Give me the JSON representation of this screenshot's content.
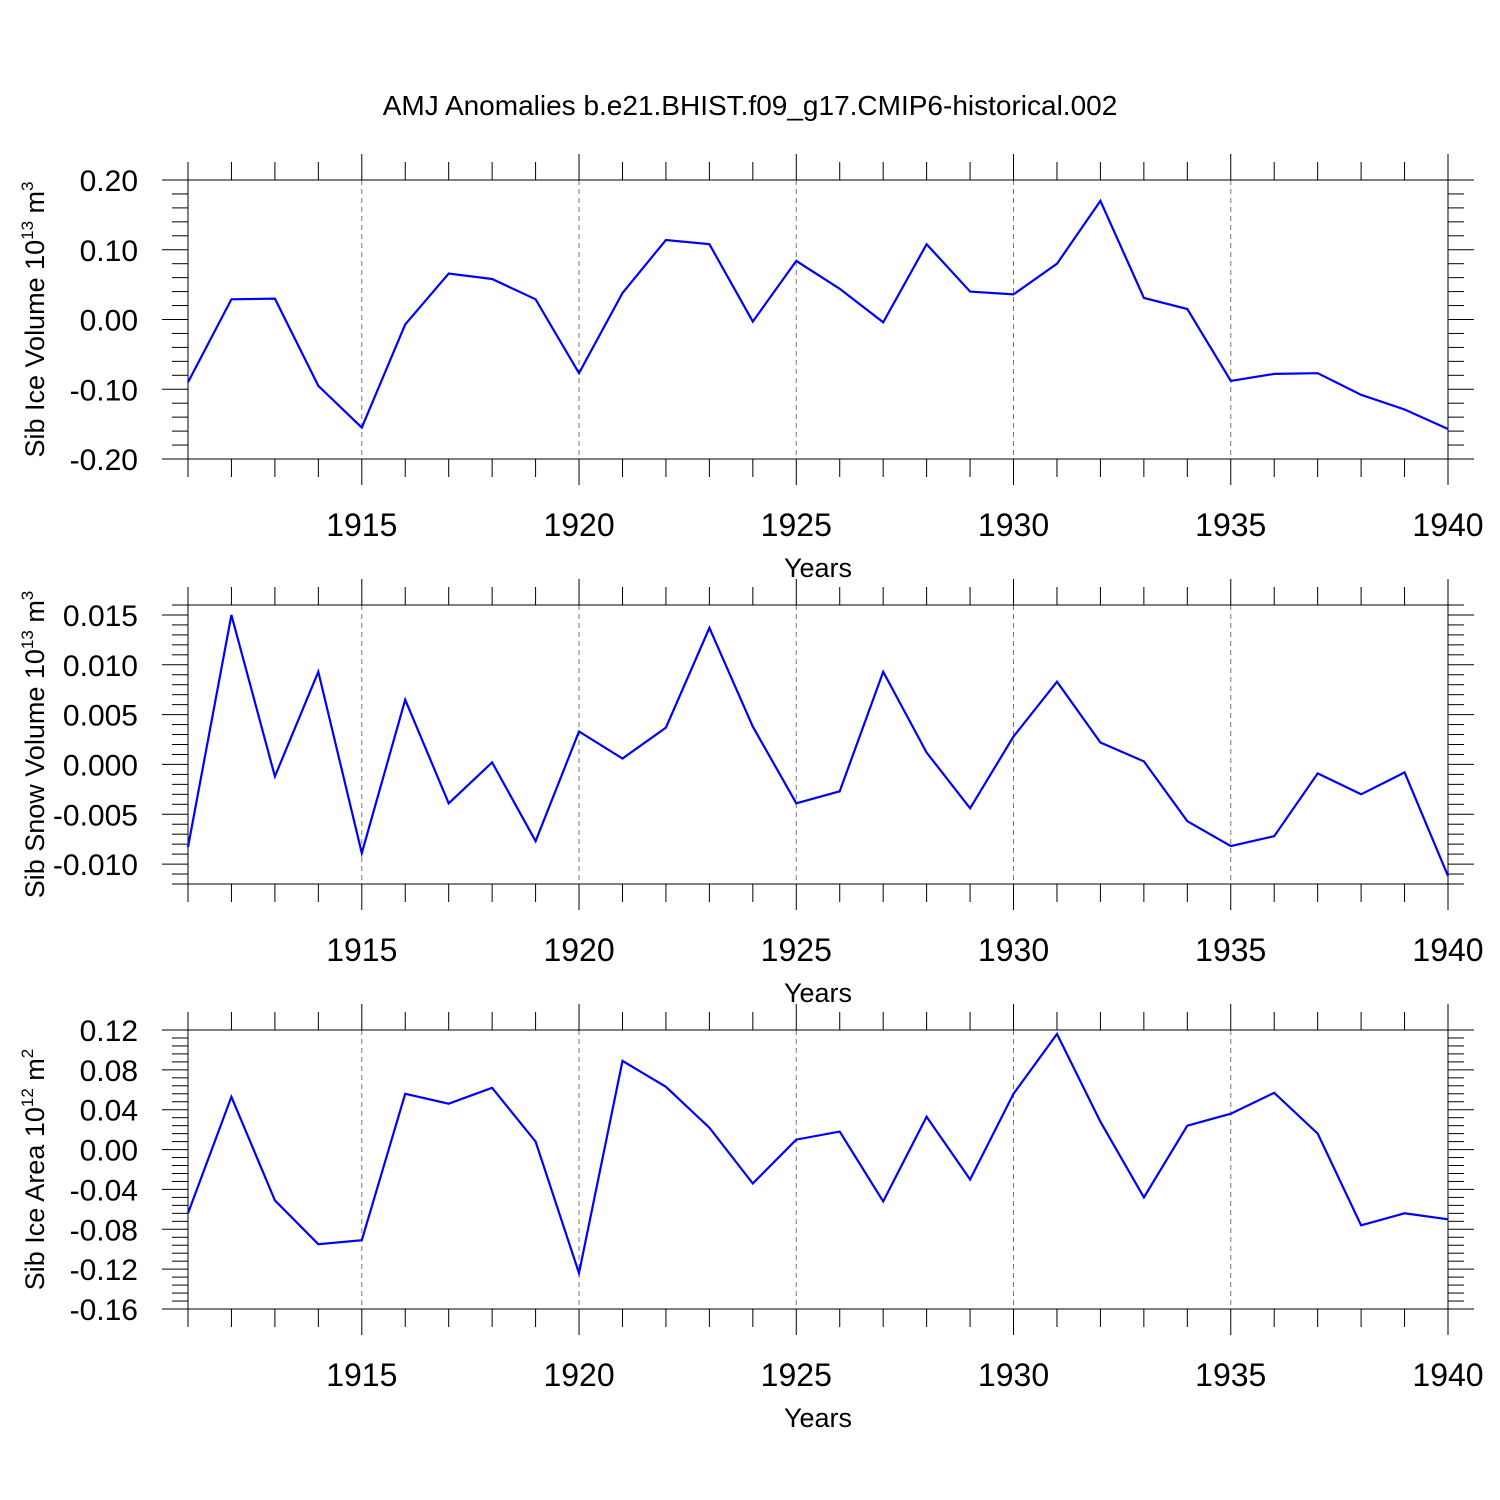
{
  "title": "AMJ Anomalies b.e21.BHIST.f09_g17.CMIP6-historical.002",
  "chart_data": [
    {
      "type": "line",
      "ylabel": "Sib Ice Volume 10",
      "ylabel_sup": "13",
      "ylabel_unit": "m",
      "ylabel_unit_sup": "3",
      "xlabel": "Years",
      "xlim": [
        1911,
        1940
      ],
      "ylim": [
        -0.2,
        0.2
      ],
      "yticks": [
        "0.20",
        "0.10",
        "0.00",
        "-0.10",
        "-0.20"
      ],
      "ytick_values": [
        0.2,
        0.1,
        0.0,
        -0.1,
        -0.2
      ],
      "xticks": [
        "1915",
        "1920",
        "1925",
        "1930",
        "1935",
        "1940"
      ],
      "xtick_values": [
        1915,
        1920,
        1925,
        1930,
        1935,
        1940
      ],
      "grid": "vertical dashed at major x ticks",
      "x": [
        1911,
        1912,
        1913,
        1914,
        1915,
        1916,
        1917,
        1918,
        1919,
        1920,
        1921,
        1922,
        1923,
        1924,
        1925,
        1926,
        1927,
        1928,
        1929,
        1930,
        1931,
        1932,
        1933,
        1934,
        1935,
        1936,
        1937,
        1938,
        1939,
        1940
      ],
      "series": [
        {
          "color": "#0000ff",
          "values": [
            -0.09,
            0.029,
            0.03,
            -0.095,
            -0.155,
            -0.007,
            0.066,
            0.058,
            0.029,
            -0.077,
            0.038,
            0.114,
            0.108,
            -0.003,
            0.084,
            0.044,
            -0.004,
            0.108,
            0.04,
            0.036,
            0.08,
            0.17,
            0.031,
            0.015,
            -0.088,
            -0.078,
            -0.077,
            -0.108,
            -0.129,
            -0.157
          ]
        }
      ]
    },
    {
      "type": "line",
      "ylabel": "Sib Snow Volume 10",
      "ylabel_sup": "13",
      "ylabel_unit": "m",
      "ylabel_unit_sup": "3",
      "xlabel": "Years",
      "xlim": [
        1911,
        1940
      ],
      "ylim": [
        -0.012,
        0.016
      ],
      "yticks": [
        "0.015",
        "0.010",
        "0.005",
        "0.000",
        "-0.005",
        "-0.010"
      ],
      "ytick_values": [
        0.015,
        0.01,
        0.005,
        0.0,
        -0.005,
        -0.01
      ],
      "xticks": [
        "1915",
        "1920",
        "1925",
        "1930",
        "1935",
        "1940"
      ],
      "xtick_values": [
        1915,
        1920,
        1925,
        1930,
        1935,
        1940
      ],
      "grid": "vertical dashed at major x ticks",
      "x": [
        1911,
        1912,
        1913,
        1914,
        1915,
        1916,
        1917,
        1918,
        1919,
        1920,
        1921,
        1922,
        1923,
        1924,
        1925,
        1926,
        1927,
        1928,
        1929,
        1930,
        1931,
        1932,
        1933,
        1934,
        1935,
        1936,
        1937,
        1938,
        1939,
        1940
      ],
      "series": [
        {
          "color": "#0000ff",
          "values": [
            -0.0083,
            0.015,
            -0.0012,
            0.0093,
            -0.0089,
            0.0065,
            -0.0039,
            0.0002,
            -0.0077,
            0.0033,
            0.0006,
            0.0037,
            0.0137,
            0.0038,
            -0.0039,
            -0.0027,
            0.0093,
            0.0012,
            -0.0044,
            0.0028,
            0.0083,
            0.0022,
            0.0003,
            -0.0057,
            -0.0082,
            -0.0072,
            -0.0009,
            -0.003,
            -0.0008,
            -0.0112
          ]
        }
      ]
    },
    {
      "type": "line",
      "ylabel": "Sib Ice Area 10",
      "ylabel_sup": "12",
      "ylabel_unit": "m",
      "ylabel_unit_sup": "2",
      "xlabel": "Years",
      "xlim": [
        1911,
        1940
      ],
      "ylim": [
        -0.16,
        0.12
      ],
      "yticks": [
        "0.12",
        "0.08",
        "0.04",
        "0.00",
        "-0.04",
        "-0.08",
        "-0.12",
        "-0.16"
      ],
      "ytick_values": [
        0.12,
        0.08,
        0.04,
        0.0,
        -0.04,
        -0.08,
        -0.12,
        -0.16
      ],
      "xticks": [
        "1915",
        "1920",
        "1925",
        "1930",
        "1935",
        "1940"
      ],
      "xtick_values": [
        1915,
        1920,
        1925,
        1930,
        1935,
        1940
      ],
      "grid": "vertical dashed at major x ticks",
      "x": [
        1911,
        1912,
        1913,
        1914,
        1915,
        1916,
        1917,
        1918,
        1919,
        1920,
        1921,
        1922,
        1923,
        1924,
        1925,
        1926,
        1927,
        1928,
        1929,
        1930,
        1931,
        1932,
        1933,
        1934,
        1935,
        1936,
        1937,
        1938,
        1939,
        1940
      ],
      "series": [
        {
          "color": "#0000ff",
          "values": [
            -0.064,
            0.053,
            -0.051,
            -0.095,
            -0.091,
            0.056,
            0.046,
            0.062,
            0.008,
            -0.124,
            0.089,
            0.063,
            0.022,
            -0.034,
            0.01,
            0.018,
            -0.052,
            0.033,
            -0.03,
            0.056,
            0.116,
            0.028,
            -0.048,
            0.024,
            0.036,
            0.057,
            0.016,
            -0.076,
            -0.064,
            -0.07
          ]
        }
      ]
    }
  ]
}
